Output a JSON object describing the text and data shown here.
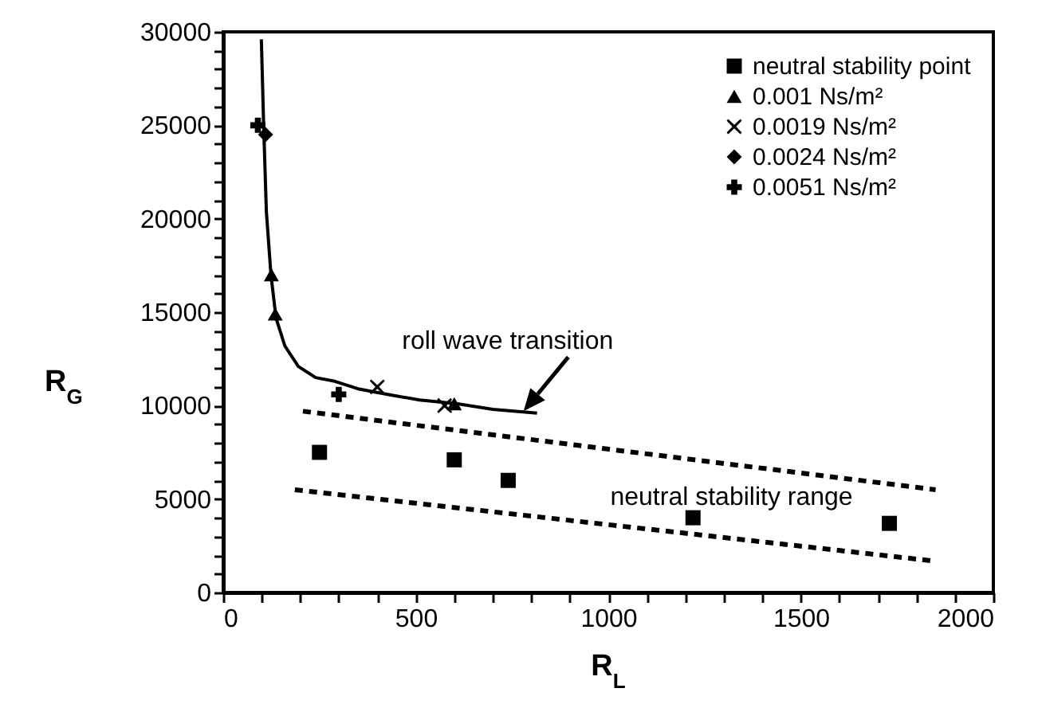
{
  "chart_data": {
    "type": "scatter",
    "xlabel": "R$_{L}$",
    "ylabel": "R$_{G}$",
    "xlim": [
      0,
      2000
    ],
    "ylim": [
      0,
      30000
    ],
    "xticks": [
      0,
      {
        "value": 100,
        "label": null
      },
      {
        "value": 200,
        "label": null
      },
      {
        "value": 300,
        "label": null
      },
      {
        "value": 400,
        "label": null
      },
      500,
      {
        "value": 600,
        "label": null
      },
      {
        "value": 700,
        "label": null
      },
      {
        "value": 800,
        "label": null
      },
      {
        "value": 900,
        "label": null
      },
      1000,
      {
        "value": 1100,
        "label": null
      },
      {
        "value": 1200,
        "label": null
      },
      {
        "value": 1300,
        "label": null
      },
      {
        "value": 1400,
        "label": null
      },
      1500,
      {
        "value": 1600,
        "label": null
      },
      {
        "value": 1700,
        "label": null
      },
      {
        "value": 1800,
        "label": null
      },
      {
        "value": 1900,
        "label": null
      },
      2000
    ],
    "yticks": [
      0,
      {
        "value": 1000,
        "label": null
      },
      {
        "value": 2000,
        "label": null
      },
      {
        "value": 3000,
        "label": null
      },
      {
        "value": 4000,
        "label": null
      },
      5000,
      {
        "value": 6000,
        "label": null
      },
      {
        "value": 7000,
        "label": null
      },
      {
        "value": 8000,
        "label": null
      },
      {
        "value": 9000,
        "label": null
      },
      10000,
      {
        "value": 11000,
        "label": null
      },
      {
        "value": 12000,
        "label": null
      },
      {
        "value": 13000,
        "label": null
      },
      {
        "value": 14000,
        "label": null
      },
      15000,
      {
        "value": 16000,
        "label": null
      },
      {
        "value": 17000,
        "label": null
      },
      {
        "value": 18000,
        "label": null
      },
      {
        "value": 19000,
        "label": null
      },
      20000,
      {
        "value": 21000,
        "label": null
      },
      {
        "value": 22000,
        "label": null
      },
      {
        "value": 23000,
        "label": null
      },
      {
        "value": 24000,
        "label": null
      },
      25000,
      {
        "value": 26000,
        "label": null
      },
      {
        "value": 27000,
        "label": null
      },
      {
        "value": 28000,
        "label": null
      },
      {
        "value": 29000,
        "label": null
      },
      30000
    ],
    "legend": "top right",
    "series": [
      {
        "type": "scatter",
        "name": "neutral stability point",
        "color": "#000000",
        "marker": "square",
        "x": [
          250,
          600,
          740,
          1220,
          1730
        ],
        "values": [
          7500,
          7100,
          6000,
          4000,
          3700
        ]
      },
      {
        "type": "scatter",
        "name": "0.001   Ns/m²",
        "color": "#000000",
        "marker": "triangle",
        "x": [
          125,
          135,
          600
        ],
        "values": [
          17000,
          14900,
          10100
        ]
      },
      {
        "type": "scatter",
        "name": "0.0019 Ns/m²",
        "color": "#000000",
        "marker": "x",
        "x": [
          400,
          575
        ],
        "values": [
          11000,
          10000
        ]
      },
      {
        "type": "scatter",
        "name": "0.0024 Ns/m²",
        "color": "#000000",
        "marker": "diamond",
        "x": [
          110
        ],
        "values": [
          24500
        ]
      },
      {
        "type": "scatter",
        "name": "0.0051 Ns/m²",
        "color": "#000000",
        "marker": "cross",
        "x": [
          90,
          300
        ],
        "values": [
          25000,
          10600
        ]
      },
      {
        "type": "line",
        "color": "#000000",
        "line_style": "solid",
        "x": [
          99,
          105,
          112,
          124,
          137,
          160,
          195,
          240,
          290,
          350,
          427,
          510,
          608,
          700,
          815
        ],
        "values": [
          29600,
          25000,
          20400,
          17000,
          14700,
          13200,
          12100,
          11500,
          11300,
          10900,
          10600,
          10300,
          10100,
          9800,
          9600
        ]
      },
      {
        "type": "line",
        "color": "#000000",
        "line_style": "dashed",
        "x": [
          207,
          1850
        ],
        "values": [
          9700,
          5500
        ]
      },
      {
        "type": "line",
        "color": "#000000",
        "line_style": "dashed",
        "x": [
          186,
          1840
        ],
        "values": [
          5500,
          1700
        ]
      }
    ],
    "annotations": [
      {
        "text": "roll wave transition",
        "x": 780,
        "y": 9700
      },
      "neutral stability range"
    ]
  }
}
